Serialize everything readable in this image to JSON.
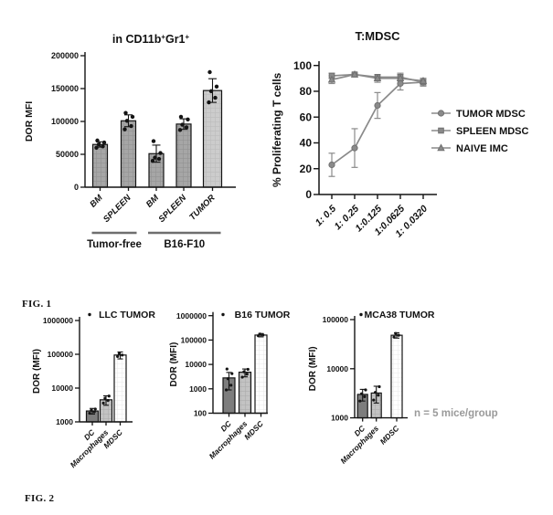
{
  "figure_labels": {
    "fig1": "FIG. 1",
    "fig2": "FIG. 2"
  },
  "annotations": {
    "sample_size": "n = 5 mice/group"
  },
  "colors": {
    "axis": "#141414",
    "text": "#111111",
    "line_gray": "#8a8a8a",
    "marker_stroke": "#6f6f6f",
    "note_gray": "#9a9a9a",
    "group_line": "#6e6e6e",
    "bar_mid": "#a6a6a6",
    "bar_mid_grid": "#8f8f8f",
    "bar_light": "#cccccc",
    "bar_light_grid": "#b9b9b9",
    "bar_dark": "#7d7d7d",
    "bar_macro": "#c3c3c3",
    "bar_macro_grid": "#a8a8a8",
    "bar_white": "#ffffff",
    "bar_white_grid": "#e9e9e9"
  },
  "chart_data": [
    {
      "id": "cd11b-gr1-bar",
      "type": "bar",
      "title": "in CD11b+Gr1+",
      "title_rich": [
        {
          "t": "in CD11b"
        },
        {
          "t": "+",
          "sup": true
        },
        {
          "t": "Gr1"
        },
        {
          "t": "+",
          "sup": true
        }
      ],
      "ylabel": "DOR MFI",
      "ylim": [
        0,
        200000
      ],
      "yticks": [
        0,
        50000,
        100000,
        150000,
        200000
      ],
      "ytick_labels": [
        "0",
        "50000",
        "100000",
        "150000",
        "200000"
      ],
      "categories": [
        "BM",
        "SPLEEN",
        "BM",
        "SPLEEN",
        "TUMOR"
      ],
      "values": [
        65000,
        101000,
        51000,
        96000,
        147000
      ],
      "errors": [
        4000,
        9000,
        13000,
        8000,
        18000
      ],
      "points": [
        [
          60000,
          62000,
          65000,
          68000,
          71000
        ],
        [
          88000,
          93000,
          101000,
          107000,
          113000
        ],
        [
          40000,
          43000,
          45000,
          52000,
          70000
        ],
        [
          87000,
          91000,
          95000,
          103000,
          107000
        ],
        [
          129000,
          136000,
          146000,
          153000,
          175000
        ]
      ],
      "bar_styles": [
        "mid",
        "mid",
        "mid",
        "mid",
        "light"
      ],
      "groups": [
        {
          "label": "Tumor-free",
          "from": 0,
          "to": 1
        },
        {
          "label": "B16-F10",
          "from": 2,
          "to": 4
        }
      ]
    },
    {
      "id": "t-mdsc-line",
      "type": "line",
      "title": "T:MDSC",
      "ylabel": "% Proliferating T cells",
      "ylim": [
        0,
        100
      ],
      "yticks": [
        0,
        20,
        40,
        60,
        80,
        100
      ],
      "categories": [
        "1: 0.5",
        "1: 0.25",
        "1:0.125",
        "1:0.0625",
        "1: 0.0320"
      ],
      "legend_position": "right",
      "series": [
        {
          "name": "TUMOR MDSC",
          "marker": "circle",
          "values": [
            23,
            36,
            69,
            86,
            87
          ],
          "errors": [
            9,
            15,
            10,
            5,
            3
          ]
        },
        {
          "name": "SPLEEN MDSC",
          "marker": "square",
          "values": [
            92,
            93,
            91,
            91,
            87
          ],
          "errors": [
            2,
            1,
            2,
            2,
            2
          ]
        },
        {
          "name": "NAIVE IMC",
          "marker": "triangle",
          "values": [
            89,
            93,
            90,
            90,
            88
          ],
          "errors": [
            3,
            1,
            3,
            4,
            2
          ]
        }
      ]
    },
    {
      "id": "llc-tumor-bar",
      "type": "bar_log",
      "title": "LLC TUMOR",
      "ylabel": "DOR (MFI)",
      "ylim": [
        1000,
        1000000
      ],
      "yticks": [
        1000,
        10000,
        100000,
        1000000
      ],
      "ytick_labels": [
        "1000",
        "10000",
        "100000",
        "1000000"
      ],
      "categories": [
        "DC",
        "Macrophages",
        "MDSC"
      ],
      "values": [
        2100,
        4500,
        95000
      ],
      "errors": [
        400,
        1400,
        22000
      ],
      "points": [
        [
          1800,
          2000,
          2200,
          2400
        ],
        [
          3600,
          4300,
          5000,
          5800
        ],
        [
          86000,
          95000,
          104000
        ]
      ],
      "bar_styles": [
        "dark",
        "macro",
        "white"
      ]
    },
    {
      "id": "b16-tumor-bar",
      "type": "bar_log",
      "title": "B16 TUMOR",
      "ylabel": "DOR (MFI)",
      "ylim": [
        100,
        1000000
      ],
      "yticks": [
        100,
        1000,
        10000,
        100000,
        1000000
      ],
      "ytick_labels": [
        "100",
        "1000",
        "10000",
        "100000",
        "1000000"
      ],
      "categories": [
        "DC",
        "Macrophages",
        "MDSC"
      ],
      "values": [
        2800,
        4800,
        160000
      ],
      "errors": [
        1900,
        1700,
        25000
      ],
      "points": [
        [
          900,
          1400,
          2600,
          4200,
          6500
        ],
        [
          3000,
          4000,
          5000,
          6300
        ],
        [
          150000,
          162000,
          175000
        ]
      ],
      "bar_styles": [
        "dark",
        "macro",
        "white"
      ]
    },
    {
      "id": "mca38-tumor-bar",
      "type": "bar_log",
      "title": "MCA38 TUMOR",
      "ylabel": "DOR (MFI)",
      "ylim": [
        1000,
        100000
      ],
      "yticks": [
        1000,
        10000,
        100000
      ],
      "ytick_labels": [
        "1000",
        "10000",
        "100000"
      ],
      "categories": [
        "DC",
        "Macrophages",
        "MDSC"
      ],
      "values": [
        3000,
        3200,
        48000
      ],
      "errors": [
        800,
        1200,
        6000
      ],
      "points": [
        [
          2200,
          2700,
          3100,
          3700
        ],
        [
          2300,
          2900,
          3300,
          4300
        ],
        [
          44000,
          48000,
          52000
        ]
      ],
      "bar_styles": [
        "dark",
        "macro",
        "white"
      ]
    }
  ]
}
